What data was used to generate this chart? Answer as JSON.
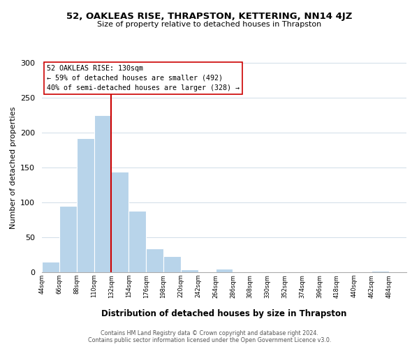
{
  "title": "52, OAKLEAS RISE, THRAPSTON, KETTERING, NN14 4JZ",
  "subtitle": "Size of property relative to detached houses in Thrapston",
  "xlabel": "Distribution of detached houses by size in Thrapston",
  "ylabel": "Number of detached properties",
  "bar_left_edges": [
    44,
    66,
    88,
    110,
    132,
    154,
    176,
    198,
    220,
    242,
    264,
    286,
    308,
    330,
    352,
    374,
    396,
    418,
    440,
    462
  ],
  "bar_heights": [
    15,
    95,
    192,
    225,
    144,
    88,
    34,
    23,
    4,
    0,
    5,
    0,
    0,
    0,
    0,
    0,
    0,
    0,
    0,
    2
  ],
  "bin_width": 22,
  "bar_color": "#b8d4ea",
  "grid_color": "#d0dde8",
  "property_line_x": 132,
  "property_line_color": "#cc0000",
  "annotation_title": "52 OAKLEAS RISE: 130sqm",
  "annotation_line1": "← 59% of detached houses are smaller (492)",
  "annotation_line2": "40% of semi-detached houses are larger (328) →",
  "annotation_box_color": "#ffffff",
  "annotation_box_edge": "#cc0000",
  "tick_labels": [
    "44sqm",
    "66sqm",
    "88sqm",
    "110sqm",
    "132sqm",
    "154sqm",
    "176sqm",
    "198sqm",
    "220sqm",
    "242sqm",
    "264sqm",
    "286sqm",
    "308sqm",
    "330sqm",
    "352sqm",
    "374sqm",
    "396sqm",
    "418sqm",
    "440sqm",
    "462sqm",
    "484sqm"
  ],
  "ylim": [
    0,
    300
  ],
  "xlim": [
    44,
    506
  ],
  "yticks": [
    0,
    50,
    100,
    150,
    200,
    250,
    300
  ],
  "footnote1": "Contains HM Land Registry data © Crown copyright and database right 2024.",
  "footnote2": "Contains public sector information licensed under the Open Government Licence v3.0."
}
